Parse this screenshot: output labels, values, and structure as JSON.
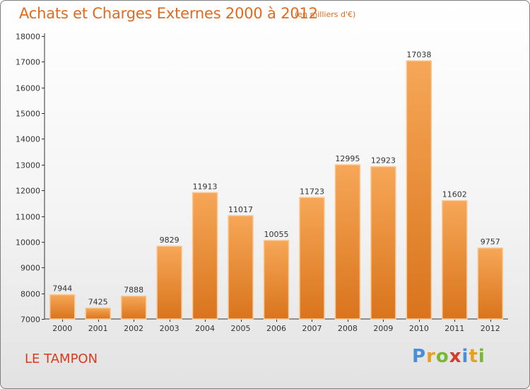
{
  "commune": "LE TAMPON",
  "logo": {
    "text": "Proxiti",
    "letters": [
      "P",
      "r",
      "o",
      "x",
      "i",
      "t",
      "i"
    ]
  },
  "colors": {
    "accent": "#e06a1e",
    "bar_top": "#f6a757",
    "bar_bottom": "#d9741c",
    "commune": "#d93b1a"
  },
  "chart_data": {
    "type": "bar",
    "title": "Achats et Charges Externes 2000 à 2012",
    "subtitle": "(en milliers d'€)",
    "xlabel": "",
    "ylabel": "",
    "categories": [
      "2000",
      "2001",
      "2002",
      "2003",
      "2004",
      "2005",
      "2006",
      "2007",
      "2008",
      "2009",
      "2010",
      "2011",
      "2012"
    ],
    "values": [
      7944,
      7425,
      7888,
      9829,
      11913,
      11017,
      10055,
      11723,
      12995,
      12923,
      17038,
      11602,
      9757
    ],
    "ylim": [
      7000,
      18000
    ],
    "yticks": [
      7000,
      8000,
      9000,
      10000,
      11000,
      12000,
      13000,
      14000,
      15000,
      16000,
      17000,
      18000
    ],
    "grid": false,
    "legend": "none"
  }
}
